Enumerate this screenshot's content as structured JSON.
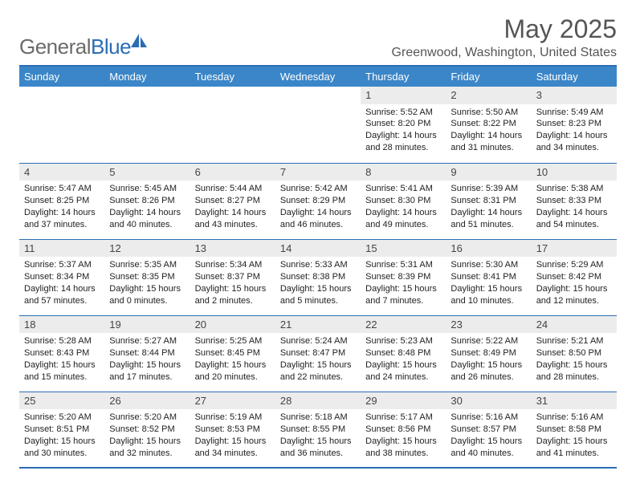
{
  "logo": {
    "text1": "General",
    "text2": "Blue"
  },
  "title": "May 2025",
  "location": "Greenwood, Washington, United States",
  "colors": {
    "header_bg": "#3b86c8",
    "border": "#2a6db4",
    "daynum_bg": "#ececec",
    "logo_gray": "#6b6b6b",
    "logo_blue": "#2a6db4"
  },
  "weekdays": [
    "Sunday",
    "Monday",
    "Tuesday",
    "Wednesday",
    "Thursday",
    "Friday",
    "Saturday"
  ],
  "weeks": [
    [
      null,
      null,
      null,
      null,
      {
        "n": "1",
        "sr": "Sunrise: 5:52 AM",
        "ss": "Sunset: 8:20 PM",
        "dl": "Daylight: 14 hours and 28 minutes."
      },
      {
        "n": "2",
        "sr": "Sunrise: 5:50 AM",
        "ss": "Sunset: 8:22 PM",
        "dl": "Daylight: 14 hours and 31 minutes."
      },
      {
        "n": "3",
        "sr": "Sunrise: 5:49 AM",
        "ss": "Sunset: 8:23 PM",
        "dl": "Daylight: 14 hours and 34 minutes."
      }
    ],
    [
      {
        "n": "4",
        "sr": "Sunrise: 5:47 AM",
        "ss": "Sunset: 8:25 PM",
        "dl": "Daylight: 14 hours and 37 minutes."
      },
      {
        "n": "5",
        "sr": "Sunrise: 5:45 AM",
        "ss": "Sunset: 8:26 PM",
        "dl": "Daylight: 14 hours and 40 minutes."
      },
      {
        "n": "6",
        "sr": "Sunrise: 5:44 AM",
        "ss": "Sunset: 8:27 PM",
        "dl": "Daylight: 14 hours and 43 minutes."
      },
      {
        "n": "7",
        "sr": "Sunrise: 5:42 AM",
        "ss": "Sunset: 8:29 PM",
        "dl": "Daylight: 14 hours and 46 minutes."
      },
      {
        "n": "8",
        "sr": "Sunrise: 5:41 AM",
        "ss": "Sunset: 8:30 PM",
        "dl": "Daylight: 14 hours and 49 minutes."
      },
      {
        "n": "9",
        "sr": "Sunrise: 5:39 AM",
        "ss": "Sunset: 8:31 PM",
        "dl": "Daylight: 14 hours and 51 minutes."
      },
      {
        "n": "10",
        "sr": "Sunrise: 5:38 AM",
        "ss": "Sunset: 8:33 PM",
        "dl": "Daylight: 14 hours and 54 minutes."
      }
    ],
    [
      {
        "n": "11",
        "sr": "Sunrise: 5:37 AM",
        "ss": "Sunset: 8:34 PM",
        "dl": "Daylight: 14 hours and 57 minutes."
      },
      {
        "n": "12",
        "sr": "Sunrise: 5:35 AM",
        "ss": "Sunset: 8:35 PM",
        "dl": "Daylight: 15 hours and 0 minutes."
      },
      {
        "n": "13",
        "sr": "Sunrise: 5:34 AM",
        "ss": "Sunset: 8:37 PM",
        "dl": "Daylight: 15 hours and 2 minutes."
      },
      {
        "n": "14",
        "sr": "Sunrise: 5:33 AM",
        "ss": "Sunset: 8:38 PM",
        "dl": "Daylight: 15 hours and 5 minutes."
      },
      {
        "n": "15",
        "sr": "Sunrise: 5:31 AM",
        "ss": "Sunset: 8:39 PM",
        "dl": "Daylight: 15 hours and 7 minutes."
      },
      {
        "n": "16",
        "sr": "Sunrise: 5:30 AM",
        "ss": "Sunset: 8:41 PM",
        "dl": "Daylight: 15 hours and 10 minutes."
      },
      {
        "n": "17",
        "sr": "Sunrise: 5:29 AM",
        "ss": "Sunset: 8:42 PM",
        "dl": "Daylight: 15 hours and 12 minutes."
      }
    ],
    [
      {
        "n": "18",
        "sr": "Sunrise: 5:28 AM",
        "ss": "Sunset: 8:43 PM",
        "dl": "Daylight: 15 hours and 15 minutes."
      },
      {
        "n": "19",
        "sr": "Sunrise: 5:27 AM",
        "ss": "Sunset: 8:44 PM",
        "dl": "Daylight: 15 hours and 17 minutes."
      },
      {
        "n": "20",
        "sr": "Sunrise: 5:25 AM",
        "ss": "Sunset: 8:45 PM",
        "dl": "Daylight: 15 hours and 20 minutes."
      },
      {
        "n": "21",
        "sr": "Sunrise: 5:24 AM",
        "ss": "Sunset: 8:47 PM",
        "dl": "Daylight: 15 hours and 22 minutes."
      },
      {
        "n": "22",
        "sr": "Sunrise: 5:23 AM",
        "ss": "Sunset: 8:48 PM",
        "dl": "Daylight: 15 hours and 24 minutes."
      },
      {
        "n": "23",
        "sr": "Sunrise: 5:22 AM",
        "ss": "Sunset: 8:49 PM",
        "dl": "Daylight: 15 hours and 26 minutes."
      },
      {
        "n": "24",
        "sr": "Sunrise: 5:21 AM",
        "ss": "Sunset: 8:50 PM",
        "dl": "Daylight: 15 hours and 28 minutes."
      }
    ],
    [
      {
        "n": "25",
        "sr": "Sunrise: 5:20 AM",
        "ss": "Sunset: 8:51 PM",
        "dl": "Daylight: 15 hours and 30 minutes."
      },
      {
        "n": "26",
        "sr": "Sunrise: 5:20 AM",
        "ss": "Sunset: 8:52 PM",
        "dl": "Daylight: 15 hours and 32 minutes."
      },
      {
        "n": "27",
        "sr": "Sunrise: 5:19 AM",
        "ss": "Sunset: 8:53 PM",
        "dl": "Daylight: 15 hours and 34 minutes."
      },
      {
        "n": "28",
        "sr": "Sunrise: 5:18 AM",
        "ss": "Sunset: 8:55 PM",
        "dl": "Daylight: 15 hours and 36 minutes."
      },
      {
        "n": "29",
        "sr": "Sunrise: 5:17 AM",
        "ss": "Sunset: 8:56 PM",
        "dl": "Daylight: 15 hours and 38 minutes."
      },
      {
        "n": "30",
        "sr": "Sunrise: 5:16 AM",
        "ss": "Sunset: 8:57 PM",
        "dl": "Daylight: 15 hours and 40 minutes."
      },
      {
        "n": "31",
        "sr": "Sunrise: 5:16 AM",
        "ss": "Sunset: 8:58 PM",
        "dl": "Daylight: 15 hours and 41 minutes."
      }
    ]
  ]
}
